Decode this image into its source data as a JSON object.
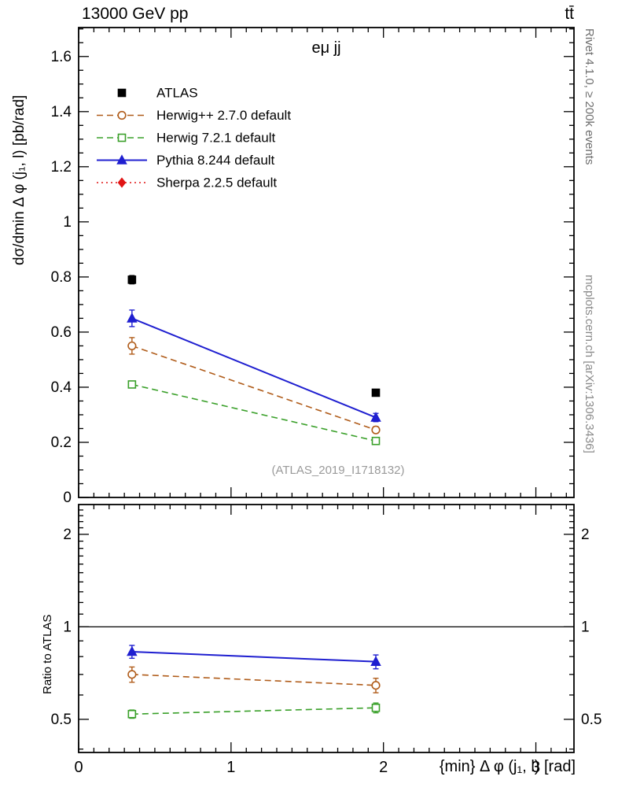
{
  "header": {
    "left": "13000 GeV pp",
    "right": "tt̄"
  },
  "side_notes": {
    "top_right": "Rivet 4.1.0, ≥ 200k events",
    "bottom_right": "mcplots.cern.ch [arXiv:1306.3436]"
  },
  "chart_data": {
    "type": "line",
    "title": "eμ jj",
    "xlabel": "{min} Δ φ (j₁, l) [rad]",
    "ylabel": "dσ/dmin Δ φ (j₁, l) [pb/rad]",
    "ratio_label": "Ratio to ATLAS",
    "watermark": "(ATLAS_2019_I1718132)",
    "legend_position": "upper-left",
    "xlim": [
      0,
      3.25
    ],
    "main_ylim": [
      0,
      1.705
    ],
    "ratio_ylim": [
      0.39,
      2.5
    ],
    "ratio_scale": "log",
    "x_major_ticks": [
      0,
      1,
      2,
      3
    ],
    "x_tick_labels": [
      "0",
      "1",
      "2",
      "3"
    ],
    "x_minor_step": 0.1,
    "y_major_ticks": [
      0,
      0.2,
      0.4,
      0.6,
      0.8,
      1.0,
      1.2,
      1.4,
      1.6
    ],
    "y_tick_labels": [
      "0",
      "0.2",
      "0.4",
      "0.6",
      "0.8",
      "1",
      "1.2",
      "1.4",
      "1.6"
    ],
    "y_minor_step": 0.05,
    "ratio_major_ticks": [
      0.5,
      1,
      2
    ],
    "ratio_tick_labels": [
      "0.5",
      "1",
      "2"
    ],
    "ratio_minor_ticks": [
      0.4,
      0.6,
      0.7,
      0.8,
      0.9,
      1.1,
      1.2,
      1.3,
      1.4,
      1.5,
      1.6,
      1.7,
      1.8,
      1.9,
      2.1,
      2.2,
      2.3,
      2.4
    ],
    "ratio_reference": 1,
    "x": [
      0.35,
      1.95
    ],
    "series": [
      {
        "name": "ATLAS",
        "color": "#000000",
        "marker": "square",
        "fill": "filled",
        "line": "none",
        "y": [
          0.79,
          0.38
        ],
        "yerr": [
          0.015,
          0.01
        ],
        "ratio": null,
        "ratio_err": null
      },
      {
        "name": "Herwig++ 2.7.0 default",
        "color": "#b05c1a",
        "marker": "circle",
        "fill": "open",
        "line": "dashed",
        "y": [
          0.55,
          0.245
        ],
        "yerr": [
          0.03,
          0.012
        ],
        "ratio": [
          0.7,
          0.645
        ],
        "ratio_err": [
          0.04,
          0.035
        ]
      },
      {
        "name": "Herwig 7.2.1 default",
        "color": "#3aa02a",
        "marker": "square",
        "fill": "open",
        "line": "dashed",
        "y": [
          0.41,
          0.205
        ],
        "yerr": [
          0.012,
          0.008
        ],
        "ratio": [
          0.52,
          0.545
        ],
        "ratio_err": [
          0.016,
          0.02
        ]
      },
      {
        "name": "Pythia 8.244 default",
        "color": "#1f1fd0",
        "marker": "triangle",
        "fill": "filled",
        "line": "solid",
        "y": [
          0.65,
          0.29
        ],
        "yerr": [
          0.03,
          0.015
        ],
        "ratio": [
          0.83,
          0.77
        ],
        "ratio_err": [
          0.04,
          0.04
        ]
      },
      {
        "name": "Sherpa 2.2.5 default",
        "color": "#e01414",
        "marker": "diamond",
        "fill": "filled",
        "line": "dotted",
        "y": [],
        "yerr": [],
        "ratio": [],
        "ratio_err": []
      }
    ]
  }
}
